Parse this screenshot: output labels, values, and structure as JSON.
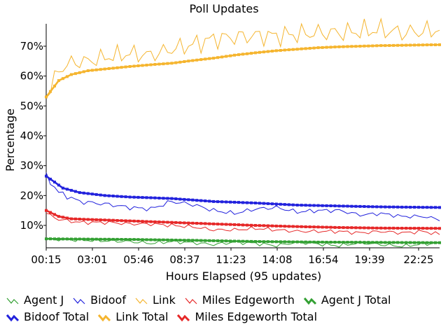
{
  "chart_data": {
    "type": "line",
    "title": "Poll Updates",
    "xlabel": "Hours Elapsed (95 updates)",
    "ylabel": "Percentage",
    "x_ticks": [
      "00:15",
      "03:01",
      "05:46",
      "08:37",
      "11:23",
      "14:08",
      "16:54",
      "19:39",
      "22:25"
    ],
    "y_ticks": [
      "10%",
      "20%",
      "30%",
      "40%",
      "50%",
      "60%",
      "70%"
    ],
    "ylim": [
      2.5,
      77.5
    ],
    "n_updates": 95,
    "grid": false,
    "legend_position": "bottom",
    "series": [
      {
        "name": "Agent J",
        "color": "#33a033",
        "kind": "poll",
        "keys": [
          [
            0,
            5.5
          ],
          [
            5,
            5.2
          ],
          [
            10,
            5.0
          ],
          [
            20,
            4.6
          ],
          [
            25,
            4.0
          ],
          [
            30,
            4.6
          ],
          [
            35,
            4.2
          ],
          [
            40,
            3.6
          ],
          [
            45,
            4.4
          ],
          [
            50,
            4.0
          ],
          [
            55,
            3.2
          ],
          [
            60,
            4.4
          ],
          [
            65,
            3.8
          ],
          [
            70,
            3.2
          ],
          [
            75,
            4.2
          ],
          [
            80,
            3.6
          ],
          [
            85,
            3.0
          ],
          [
            90,
            3.8
          ],
          [
            94,
            4.0
          ]
        ]
      },
      {
        "name": "Bidoof",
        "color": "#2222dd",
        "kind": "poll",
        "keys": [
          [
            0,
            26.5
          ],
          [
            3,
            21.0
          ],
          [
            8,
            18.0
          ],
          [
            15,
            17.0
          ],
          [
            20,
            16.0
          ],
          [
            25,
            15.5
          ],
          [
            30,
            18.0
          ],
          [
            35,
            17.0
          ],
          [
            40,
            15.0
          ],
          [
            45,
            14.0
          ],
          [
            50,
            15.5
          ],
          [
            55,
            16.0
          ],
          [
            60,
            14.5
          ],
          [
            65,
            15.0
          ],
          [
            70,
            15.0
          ],
          [
            75,
            13.5
          ],
          [
            80,
            14.0
          ],
          [
            85,
            13.0
          ],
          [
            90,
            13.0
          ],
          [
            94,
            12.0
          ]
        ]
      },
      {
        "name": "Link",
        "color": "#f5b52f",
        "kind": "poll",
        "keys": [
          [
            0,
            53.0
          ],
          [
            3,
            62.0
          ],
          [
            6,
            64.5
          ],
          [
            10,
            65.0
          ],
          [
            15,
            66.5
          ],
          [
            20,
            67.5
          ],
          [
            25,
            67.0
          ],
          [
            30,
            69.0
          ],
          [
            35,
            70.5
          ],
          [
            40,
            72.5
          ],
          [
            45,
            73.0
          ],
          [
            50,
            73.5
          ],
          [
            55,
            73.5
          ],
          [
            60,
            74.0
          ],
          [
            65,
            74.5
          ],
          [
            70,
            74.5
          ],
          [
            75,
            75.0
          ],
          [
            80,
            75.5
          ],
          [
            85,
            74.5
          ],
          [
            90,
            75.0
          ],
          [
            94,
            75.5
          ]
        ]
      },
      {
        "name": "Miles Edgeworth",
        "color": "#e62828",
        "kind": "poll",
        "keys": [
          [
            0,
            14.0
          ],
          [
            3,
            12.0
          ],
          [
            8,
            11.0
          ],
          [
            15,
            11.0
          ],
          [
            20,
            10.5
          ],
          [
            25,
            10.5
          ],
          [
            30,
            10.0
          ],
          [
            35,
            9.5
          ],
          [
            40,
            8.5
          ],
          [
            45,
            8.5
          ],
          [
            50,
            9.0
          ],
          [
            55,
            8.5
          ],
          [
            60,
            8.0
          ],
          [
            65,
            8.0
          ],
          [
            70,
            8.0
          ],
          [
            75,
            7.5
          ],
          [
            80,
            8.0
          ],
          [
            85,
            7.5
          ],
          [
            90,
            8.0
          ],
          [
            94,
            7.0
          ]
        ]
      },
      {
        "name": "Agent J Total",
        "color": "#33a033",
        "kind": "total",
        "keys": [
          [
            0,
            5.5
          ],
          [
            10,
            5.4
          ],
          [
            20,
            5.3
          ],
          [
            35,
            5.0
          ],
          [
            50,
            4.6
          ],
          [
            65,
            4.4
          ],
          [
            80,
            4.3
          ],
          [
            94,
            4.2
          ]
        ]
      },
      {
        "name": "Bidoof Total",
        "color": "#2222dd",
        "kind": "total",
        "keys": [
          [
            0,
            26.5
          ],
          [
            4,
            22.5
          ],
          [
            8,
            21.0
          ],
          [
            14,
            20.0
          ],
          [
            20,
            19.5
          ],
          [
            30,
            19.0
          ],
          [
            40,
            18.0
          ],
          [
            50,
            17.5
          ],
          [
            60,
            16.8
          ],
          [
            70,
            16.5
          ],
          [
            80,
            16.2
          ],
          [
            94,
            16.0
          ]
        ]
      },
      {
        "name": "Link Total",
        "color": "#f5b52f",
        "kind": "total",
        "keys": [
          [
            0,
            53.0
          ],
          [
            3,
            58.5
          ],
          [
            6,
            60.5
          ],
          [
            10,
            61.8
          ],
          [
            15,
            62.5
          ],
          [
            20,
            63.2
          ],
          [
            25,
            63.8
          ],
          [
            30,
            64.3
          ],
          [
            35,
            65.2
          ],
          [
            40,
            66.0
          ],
          [
            45,
            67.0
          ],
          [
            50,
            67.8
          ],
          [
            55,
            68.5
          ],
          [
            60,
            69.0
          ],
          [
            65,
            69.5
          ],
          [
            70,
            69.8
          ],
          [
            80,
            70.2
          ],
          [
            94,
            70.5
          ]
        ]
      },
      {
        "name": "Miles Edgeworth Total",
        "color": "#e62828",
        "kind": "total",
        "keys": [
          [
            0,
            15.0
          ],
          [
            3,
            13.0
          ],
          [
            6,
            12.2
          ],
          [
            10,
            12.0
          ],
          [
            20,
            11.5
          ],
          [
            30,
            11.0
          ],
          [
            40,
            10.5
          ],
          [
            50,
            10.0
          ],
          [
            60,
            9.6
          ],
          [
            70,
            9.3
          ],
          [
            80,
            9.1
          ],
          [
            94,
            9.0
          ]
        ]
      }
    ]
  },
  "legend": {
    "items": [
      {
        "label": "Agent J",
        "color": "#33a033",
        "kind": "poll"
      },
      {
        "label": "Bidoof",
        "color": "#2222dd",
        "kind": "poll"
      },
      {
        "label": "Link",
        "color": "#f5b52f",
        "kind": "poll"
      },
      {
        "label": "Miles Edgeworth",
        "color": "#e62828",
        "kind": "poll"
      },
      {
        "label": "Agent J Total",
        "color": "#33a033",
        "kind": "total"
      },
      {
        "label": "Bidoof Total",
        "color": "#2222dd",
        "kind": "total"
      },
      {
        "label": "Link Total",
        "color": "#f5b52f",
        "kind": "total"
      },
      {
        "label": "Miles Edgeworth Total",
        "color": "#e62828",
        "kind": "total"
      }
    ]
  }
}
